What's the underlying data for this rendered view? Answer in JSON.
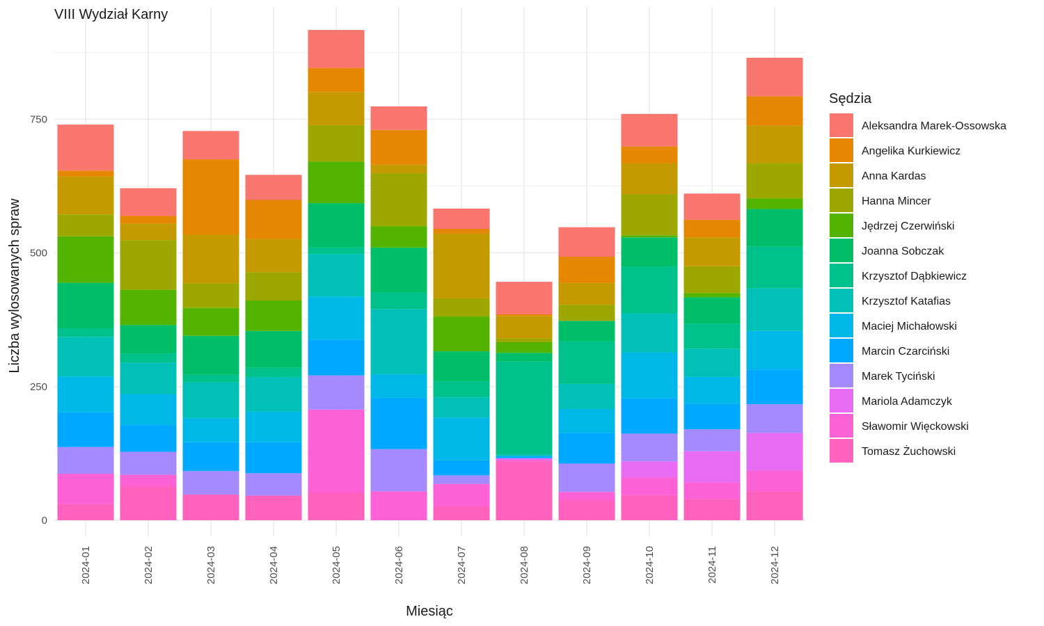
{
  "chart_data": {
    "type": "bar",
    "stacked": true,
    "title": "VIII Wydział Karny",
    "xlabel": "Miesiąc",
    "ylabel": "Liczba wylosowanych spraw",
    "ylim": [
      -30,
      960
    ],
    "yticks": [
      0,
      250,
      500,
      750
    ],
    "grid": true,
    "legend_title": "Sędzia",
    "legend_position": "right",
    "categories": [
      "2024-01",
      "2024-02",
      "2024-03",
      "2024-04",
      "2024-05",
      "2024-06",
      "2024-07",
      "2024-08",
      "2024-09",
      "2024-10",
      "2024-11",
      "2024-12"
    ],
    "series": [
      {
        "name": "Tomasz Żuchowski",
        "color": "#FF62BC",
        "values": [
          30,
          63,
          48,
          46,
          52,
          0,
          26,
          110,
          37,
          47,
          40,
          54
        ]
      },
      {
        "name": "Sławomir Więckowski",
        "color": "#FC61D5",
        "values": [
          57,
          22,
          0,
          0,
          155,
          54,
          42,
          3,
          16,
          33,
          31,
          39
        ]
      },
      {
        "name": "Mariola Adamczyk",
        "color": "#E76BF3",
        "values": [
          0,
          0,
          0,
          0,
          0,
          0,
          0,
          3,
          0,
          30,
          58,
          70
        ]
      },
      {
        "name": "Marek Tyciński",
        "color": "#A58AFF",
        "values": [
          50,
          43,
          44,
          42,
          64,
          79,
          16,
          0,
          53,
          52,
          41,
          54
        ]
      },
      {
        "name": "Marcin Czarciński",
        "color": "#00A9FF",
        "values": [
          65,
          50,
          54,
          58,
          67,
          96,
          28,
          4,
          57,
          66,
          48,
          65
        ]
      },
      {
        "name": "Maciej Michałowski",
        "color": "#00B8E7",
        "values": [
          67,
          58,
          45,
          57,
          80,
          44,
          80,
          0,
          45,
          86,
          50,
          72
        ]
      },
      {
        "name": "Krzysztof Katafias",
        "color": "#00C0B8",
        "values": [
          74,
          59,
          67,
          65,
          80,
          122,
          38,
          3,
          47,
          73,
          53,
          80
        ]
      },
      {
        "name": "Krzysztof Dąbkiewicz",
        "color": "#00C08B",
        "values": [
          16,
          17,
          14,
          17,
          12,
          31,
          30,
          174,
          80,
          87,
          47,
          78
        ]
      },
      {
        "name": "Joanna Sobczak",
        "color": "#00BE67",
        "values": [
          85,
          53,
          73,
          69,
          83,
          84,
          56,
          16,
          38,
          55,
          49,
          70
        ]
      },
      {
        "name": "Jędrzej Czerwiński",
        "color": "#53B400",
        "values": [
          87,
          66,
          52,
          57,
          78,
          40,
          65,
          20,
          0,
          4,
          8,
          20
        ]
      },
      {
        "name": "Hanna Mincer",
        "color": "#9CA700",
        "values": [
          41,
          93,
          46,
          53,
          68,
          99,
          34,
          7,
          30,
          77,
          50,
          66
        ]
      },
      {
        "name": "Anna Kardas",
        "color": "#C49A00",
        "values": [
          71,
          31,
          91,
          62,
          62,
          16,
          121,
          42,
          41,
          58,
          54,
          70
        ]
      },
      {
        "name": "Angelika Kurkiewicz",
        "color": "#E58700",
        "values": [
          11,
          14,
          141,
          73,
          45,
          65,
          9,
          3,
          49,
          31,
          33,
          55
        ]
      },
      {
        "name": "Aleksandra Marek-Ossowska",
        "color": "#F8766D",
        "values": [
          86,
          52,
          53,
          47,
          71,
          44,
          38,
          61,
          55,
          61,
          49,
          72
        ]
      }
    ],
    "legend_order": [
      "Aleksandra Marek-Ossowska",
      "Angelika Kurkiewicz",
      "Anna Kardas",
      "Hanna Mincer",
      "Jędrzej Czerwiński",
      "Joanna Sobczak",
      "Krzysztof Dąbkiewicz",
      "Krzysztof Katafias",
      "Maciej Michałowski",
      "Marcin Czarciński",
      "Marek Tyciński",
      "Mariola Adamczyk",
      "Sławomir Więckowski",
      "Tomasz Żuchowski"
    ]
  }
}
